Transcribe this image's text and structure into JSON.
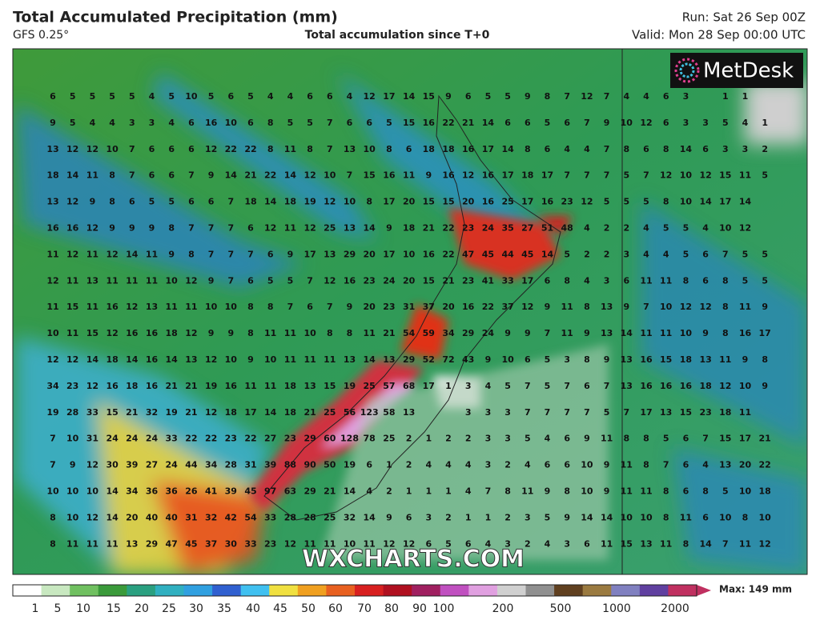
{
  "header": {
    "title": "Total Accumulated Precipitation (mm)",
    "model": "GFS 0.25°",
    "subtitle": "Total accumulation since T+0",
    "run": "Run: Sat 26 Sep 00Z",
    "valid": "Valid: Mon 28 Sep 00:00 UTC"
  },
  "logo": "MetDesk",
  "watermark": "WXCHARTS.COM",
  "grid": [
    [
      6,
      5,
      5,
      5,
      5,
      4,
      5,
      10,
      5,
      6,
      5,
      4,
      4,
      6,
      6,
      4,
      12,
      17,
      14,
      15,
      9,
      6,
      5,
      5,
      9,
      8,
      7,
      12,
      7,
      4,
      4,
      6,
      3,
      null,
      1,
      1
    ],
    [
      9,
      5,
      4,
      4,
      3,
      3,
      4,
      6,
      16,
      10,
      6,
      8,
      5,
      5,
      7,
      6,
      6,
      5,
      15,
      16,
      22,
      21,
      14,
      6,
      6,
      5,
      6,
      7,
      9,
      10,
      12,
      6,
      3,
      3,
      5,
      4,
      1
    ],
    [
      13,
      12,
      12,
      10,
      7,
      6,
      6,
      6,
      12,
      22,
      22,
      8,
      11,
      8,
      7,
      13,
      10,
      8,
      6,
      18,
      18,
      16,
      17,
      14,
      8,
      6,
      4,
      4,
      7,
      8,
      6,
      8,
      14,
      6,
      3,
      3,
      2
    ],
    [
      18,
      14,
      11,
      8,
      7,
      6,
      6,
      7,
      9,
      14,
      21,
      22,
      14,
      12,
      10,
      7,
      15,
      16,
      11,
      9,
      16,
      12,
      16,
      17,
      18,
      17,
      7,
      7,
      7,
      5,
      7,
      12,
      10,
      12,
      15,
      11,
      5
    ],
    [
      13,
      12,
      9,
      8,
      6,
      5,
      5,
      6,
      6,
      7,
      18,
      14,
      18,
      19,
      12,
      10,
      8,
      17,
      20,
      15,
      15,
      20,
      16,
      25,
      17,
      16,
      23,
      12,
      5,
      5,
      5,
      8,
      10,
      14,
      17,
      14
    ],
    [
      16,
      16,
      12,
      9,
      9,
      9,
      8,
      7,
      7,
      7,
      6,
      12,
      11,
      12,
      25,
      13,
      14,
      9,
      18,
      21,
      22,
      23,
      24,
      35,
      27,
      51,
      48,
      4,
      2,
      2,
      4,
      5,
      5,
      4,
      10,
      12
    ],
    [
      11,
      12,
      11,
      12,
      14,
      11,
      9,
      8,
      7,
      7,
      7,
      6,
      9,
      17,
      13,
      29,
      20,
      17,
      10,
      16,
      22,
      47,
      45,
      44,
      45,
      14,
      5,
      2,
      2,
      3,
      4,
      4,
      5,
      6,
      7,
      5,
      5
    ],
    [
      12,
      11,
      13,
      11,
      11,
      11,
      10,
      12,
      9,
      7,
      6,
      5,
      5,
      7,
      12,
      16,
      23,
      24,
      20,
      15,
      21,
      23,
      41,
      33,
      17,
      6,
      8,
      4,
      3,
      6,
      11,
      11,
      8,
      6,
      8,
      5,
      5
    ],
    [
      11,
      15,
      11,
      16,
      12,
      13,
      11,
      11,
      10,
      10,
      8,
      8,
      7,
      6,
      7,
      9,
      20,
      23,
      31,
      37,
      20,
      16,
      22,
      37,
      12,
      9,
      11,
      8,
      13,
      9,
      7,
      10,
      12,
      12,
      8,
      11,
      9
    ],
    [
      10,
      11,
      15,
      12,
      16,
      16,
      18,
      12,
      9,
      9,
      8,
      11,
      11,
      10,
      8,
      8,
      11,
      21,
      54,
      59,
      34,
      29,
      24,
      9,
      9,
      7,
      11,
      9,
      13,
      14,
      11,
      11,
      10,
      9,
      8,
      16,
      17
    ],
    [
      12,
      12,
      14,
      18,
      14,
      16,
      14,
      13,
      12,
      10,
      9,
      10,
      11,
      11,
      11,
      13,
      14,
      13,
      29,
      52,
      72,
      43,
      9,
      10,
      6,
      5,
      3,
      8,
      9,
      13,
      16,
      15,
      18,
      13,
      11,
      9,
      8
    ],
    [
      34,
      23,
      12,
      16,
      18,
      16,
      21,
      21,
      19,
      16,
      11,
      11,
      18,
      13,
      15,
      19,
      25,
      57,
      68,
      17,
      1,
      3,
      4,
      5,
      7,
      5,
      7,
      6,
      7,
      13,
      16,
      16,
      16,
      18,
      12,
      10,
      9
    ],
    [
      19,
      28,
      33,
      15,
      21,
      32,
      19,
      21,
      12,
      18,
      17,
      14,
      18,
      21,
      25,
      56,
      123,
      58,
      13,
      null,
      null,
      3,
      3,
      3,
      7,
      7,
      7,
      7,
      5,
      7,
      17,
      13,
      15,
      23,
      18,
      11
    ],
    [
      7,
      10,
      31,
      24,
      24,
      24,
      33,
      22,
      22,
      23,
      22,
      27,
      23,
      29,
      60,
      128,
      78,
      25,
      2,
      1,
      2,
      2,
      3,
      3,
      5,
      4,
      6,
      9,
      11,
      8,
      8,
      5,
      6,
      7,
      15,
      17,
      21
    ],
    [
      7,
      9,
      12,
      30,
      39,
      27,
      24,
      44,
      34,
      28,
      31,
      39,
      88,
      90,
      50,
      19,
      6,
      1,
      2,
      4,
      4,
      4,
      3,
      2,
      4,
      6,
      6,
      10,
      9,
      11,
      8,
      7,
      6,
      4,
      13,
      20,
      22
    ],
    [
      10,
      10,
      10,
      14,
      34,
      36,
      36,
      26,
      41,
      39,
      45,
      97,
      63,
      29,
      21,
      14,
      4,
      2,
      1,
      1,
      1,
      4,
      7,
      8,
      11,
      9,
      8,
      10,
      9,
      11,
      11,
      8,
      6,
      8,
      5,
      10,
      18
    ],
    [
      8,
      10,
      12,
      14,
      20,
      40,
      40,
      31,
      32,
      42,
      54,
      33,
      28,
      28,
      25,
      32,
      14,
      9,
      6,
      3,
      2,
      1,
      1,
      2,
      3,
      5,
      9,
      14,
      14,
      10,
      10,
      8,
      11,
      6,
      10,
      8,
      10
    ],
    [
      8,
      11,
      11,
      11,
      13,
      29,
      47,
      45,
      37,
      30,
      33,
      23,
      12,
      11,
      11,
      10,
      11,
      12,
      12,
      6,
      5,
      6,
      4,
      3,
      2,
      4,
      3,
      6,
      11,
      15,
      13,
      11,
      8,
      14,
      7,
      11,
      12
    ]
  ],
  "legend": {
    "labels": [
      1,
      5,
      10,
      15,
      20,
      25,
      30,
      35,
      40,
      45,
      50,
      60,
      70,
      80,
      90,
      100,
      200,
      500,
      1000,
      2000
    ],
    "max": "Max: 149 mm"
  }
}
